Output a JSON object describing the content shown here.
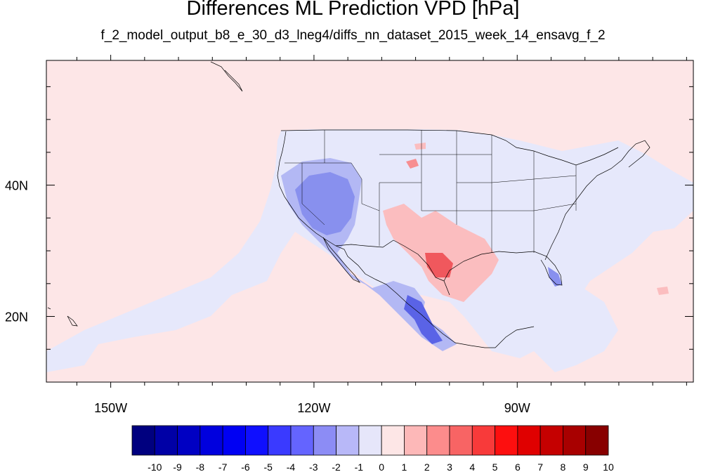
{
  "title": "Differences ML Prediction VPD [hPa]",
  "subtitle": "f_2_model_output_b8_e_30_d3_lneg4/diffs_nn_dataset_2015_week_14_ensavg_f_2",
  "map": {
    "lon_range": [
      -159.5,
      -64.0
    ],
    "lat_range": [
      10.0,
      59.0
    ],
    "lon_labels": [
      {
        "lon": -150,
        "label": "150W"
      },
      {
        "lon": -120,
        "label": "120W"
      },
      {
        "lon": -90,
        "label": "90W"
      }
    ],
    "lat_labels": [
      {
        "lat": 40,
        "label": "40N"
      },
      {
        "lat": 20,
        "label": "20N"
      }
    ],
    "background_field_color": "#fde6e7",
    "region_colors": {
      "light_blue": "#e6e8fb",
      "mid_blue": "#b3b8f4",
      "blue": "#8890ee",
      "strong_blue": "#5a63e6",
      "light_red": "#fbbdbf",
      "mid_red": "#f78e91",
      "strong_red": "#f0585d"
    }
  },
  "colorbar": {
    "labels": [
      "-10",
      "-9",
      "-8",
      "-7",
      "-6",
      "-5",
      "-4",
      "-3",
      "-2",
      "-1",
      "0",
      "1",
      "2",
      "3",
      "4",
      "5",
      "6",
      "7",
      "8",
      "9",
      "10"
    ],
    "colors": [
      "#00007f",
      "#0000a6",
      "#0000c3",
      "#0000de",
      "#0000f3",
      "#0f0fff",
      "#3a3aff",
      "#6464ff",
      "#8c8cf5",
      "#b8b8f8",
      "#e6e6fa",
      "#fde6e6",
      "#fdb8b8",
      "#fc8c8c",
      "#f86464",
      "#f83a3a",
      "#fd0f0f",
      "#e00000",
      "#c50000",
      "#a80000",
      "#880000"
    ]
  }
}
